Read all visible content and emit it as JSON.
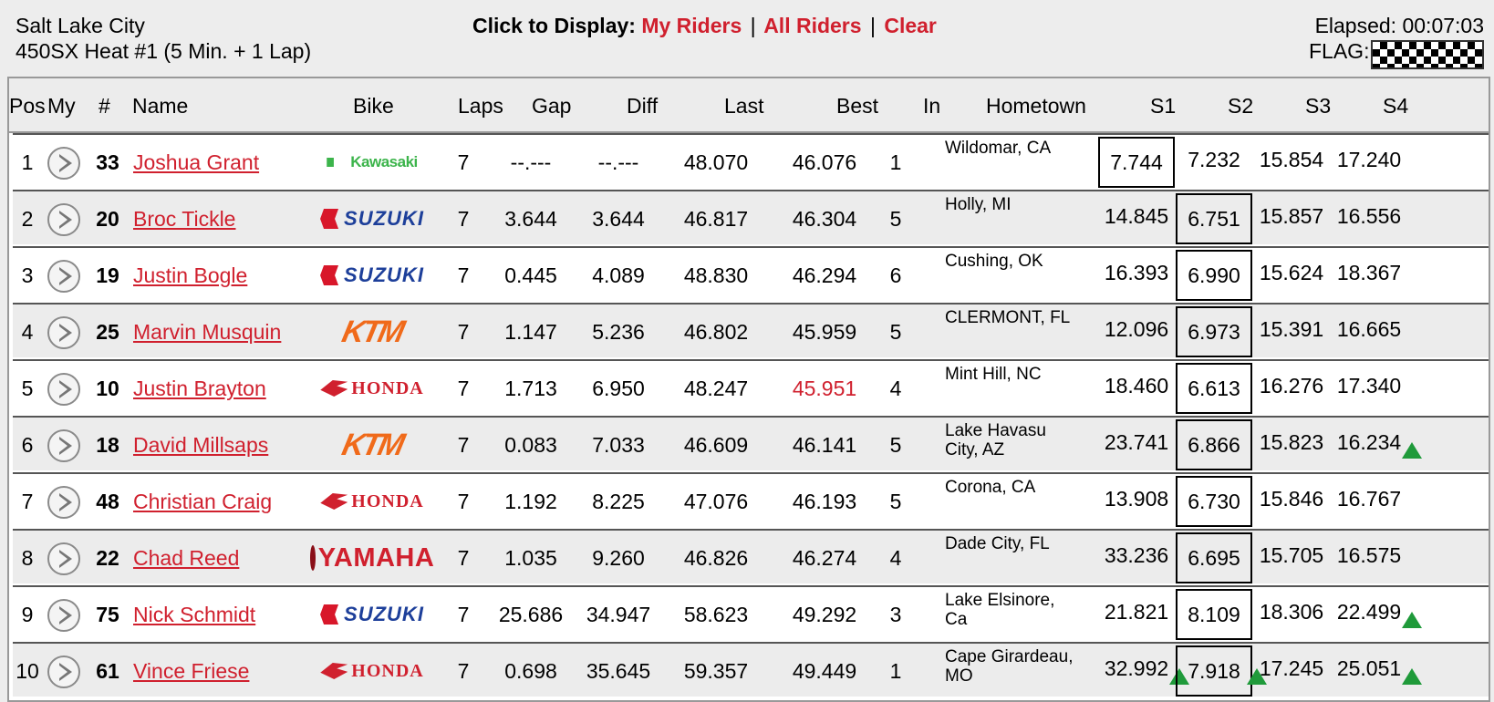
{
  "event": {
    "venue": "Salt Lake City",
    "race": "450SX Heat #1 (5 Min. + 1 Lap)"
  },
  "display": {
    "prompt": "Click to Display:",
    "my_riders": "My Riders",
    "all_riders": "All Riders",
    "clear": "Clear",
    "separator": "|"
  },
  "status": {
    "elapsed_label": "Elapsed:",
    "elapsed_value": "00:07:03",
    "flag_label": "FLAG:",
    "flag": "checkered"
  },
  "columns": {
    "pos": "Pos",
    "my": "My",
    "num": "#",
    "name": "Name",
    "bike": "Bike",
    "laps": "Laps",
    "gap": "Gap",
    "diff": "Diff",
    "last": "Last",
    "best": "Best",
    "in": "In",
    "hometown": "Hometown",
    "s1": "S1",
    "s2": "S2",
    "s3": "S3",
    "s4": "S4"
  },
  "colors": {
    "accent_red": "#d0202e",
    "up_arrow_green": "#1f9a3a"
  },
  "riders": [
    {
      "pos": "1",
      "num": "33",
      "name": "Joshua Grant",
      "bike": "Kawasaki",
      "laps": "7",
      "gap": "--.---",
      "diff": "--.---",
      "last": "48.070",
      "best": "46.076",
      "best_highlight": false,
      "in": "1",
      "hometown": [
        "Wildomar, CA",
        ""
      ],
      "s1": "7.744",
      "s2": "7.232",
      "s3": "15.854",
      "s4": "17.240",
      "boxed": "s1",
      "arrows": []
    },
    {
      "pos": "2",
      "num": "20",
      "name": "Broc Tickle",
      "bike": "SUZUKI",
      "laps": "7",
      "gap": "3.644",
      "diff": "3.644",
      "last": "46.817",
      "best": "46.304",
      "best_highlight": false,
      "in": "5",
      "hometown": [
        "Holly, MI",
        ""
      ],
      "s1": "14.845",
      "s2": "6.751",
      "s3": "15.857",
      "s4": "16.556",
      "boxed": "s2",
      "arrows": []
    },
    {
      "pos": "3",
      "num": "19",
      "name": "Justin Bogle",
      "bike": "SUZUKI",
      "laps": "7",
      "gap": "0.445",
      "diff": "4.089",
      "last": "48.830",
      "best": "46.294",
      "best_highlight": false,
      "in": "6",
      "hometown": [
        "Cushing, OK",
        ""
      ],
      "s1": "16.393",
      "s2": "6.990",
      "s3": "15.624",
      "s4": "18.367",
      "boxed": "s2",
      "arrows": []
    },
    {
      "pos": "4",
      "num": "25",
      "name": "Marvin Musquin",
      "bike": "KTM",
      "laps": "7",
      "gap": "1.147",
      "diff": "5.236",
      "last": "46.802",
      "best": "45.959",
      "best_highlight": false,
      "in": "5",
      "hometown": [
        "CLERMONT, FL",
        ""
      ],
      "s1": "12.096",
      "s2": "6.973",
      "s3": "15.391",
      "s4": "16.665",
      "boxed": "s2",
      "arrows": []
    },
    {
      "pos": "5",
      "num": "10",
      "name": "Justin Brayton",
      "bike": "HONDA",
      "laps": "7",
      "gap": "1.713",
      "diff": "6.950",
      "last": "48.247",
      "best": "45.951",
      "best_highlight": true,
      "in": "4",
      "hometown": [
        "Mint Hill, NC",
        ""
      ],
      "s1": "18.460",
      "s2": "6.613",
      "s3": "16.276",
      "s4": "17.340",
      "boxed": "s2",
      "arrows": []
    },
    {
      "pos": "6",
      "num": "18",
      "name": "David Millsaps",
      "bike": "KTM",
      "laps": "7",
      "gap": "0.083",
      "diff": "7.033",
      "last": "46.609",
      "best": "46.141",
      "best_highlight": false,
      "in": "5",
      "hometown": [
        "Lake Havasu",
        "City, AZ"
      ],
      "s1": "23.741",
      "s2": "6.866",
      "s3": "15.823",
      "s4": "16.234",
      "boxed": "s2",
      "arrows": [
        "s4"
      ]
    },
    {
      "pos": "7",
      "num": "48",
      "name": "Christian Craig",
      "bike": "HONDA",
      "laps": "7",
      "gap": "1.192",
      "diff": "8.225",
      "last": "47.076",
      "best": "46.193",
      "best_highlight": false,
      "in": "5",
      "hometown": [
        "Corona, CA",
        ""
      ],
      "s1": "13.908",
      "s2": "6.730",
      "s3": "15.846",
      "s4": "16.767",
      "boxed": "s2",
      "arrows": []
    },
    {
      "pos": "8",
      "num": "22",
      "name": "Chad Reed",
      "bike": "YAMAHA",
      "laps": "7",
      "gap": "1.035",
      "diff": "9.260",
      "last": "46.826",
      "best": "46.274",
      "best_highlight": false,
      "in": "4",
      "hometown": [
        "Dade City, FL",
        ""
      ],
      "s1": "33.236",
      "s2": "6.695",
      "s3": "15.705",
      "s4": "16.575",
      "boxed": "s2",
      "arrows": []
    },
    {
      "pos": "9",
      "num": "75",
      "name": "Nick Schmidt",
      "bike": "SUZUKI",
      "laps": "7",
      "gap": "25.686",
      "diff": "34.947",
      "last": "58.623",
      "best": "49.292",
      "best_highlight": false,
      "in": "3",
      "hometown": [
        "Lake Elsinore,",
        "Ca"
      ],
      "s1": "21.821",
      "s2": "8.109",
      "s3": "18.306",
      "s4": "22.499",
      "boxed": "s2",
      "arrows": [
        "s4"
      ]
    },
    {
      "pos": "10",
      "num": "61",
      "name": "Vince Friese",
      "bike": "HONDA",
      "laps": "7",
      "gap": "0.698",
      "diff": "35.645",
      "last": "59.357",
      "best": "49.449",
      "best_highlight": false,
      "in": "1",
      "hometown": [
        "Cape Girardeau,",
        "MO"
      ],
      "s1": "32.992",
      "s2": "7.918",
      "s3": "17.245",
      "s4": "25.051",
      "boxed": "s2",
      "arrows": [
        "s1",
        "s2",
        "s4"
      ]
    }
  ]
}
